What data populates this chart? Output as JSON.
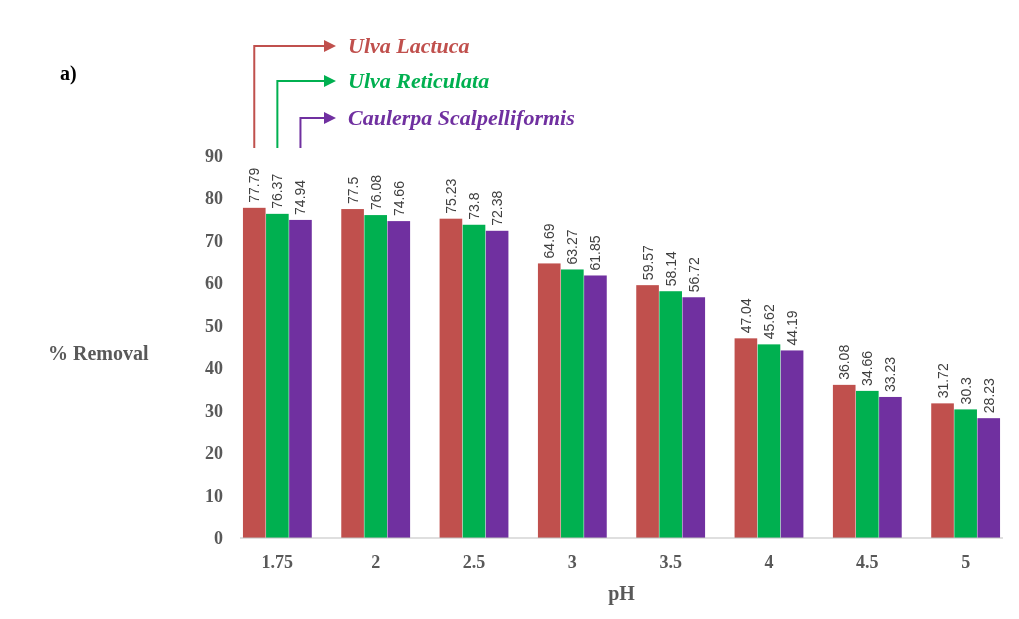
{
  "chart_data": {
    "type": "bar",
    "xlabel": "pH",
    "ylabel": "% Removal",
    "annotations": [
      "a)"
    ],
    "categories": [
      "1.75",
      "2",
      "2.5",
      "3",
      "3.5",
      "4",
      "4.5",
      "5"
    ],
    "series": [
      {
        "name": "Ulva Lactuca",
        "color": "#c0504d",
        "values": [
          77.79,
          77.5,
          75.23,
          64.69,
          59.57,
          47.04,
          36.08,
          31.72
        ]
      },
      {
        "name": "Ulva Reticulata",
        "color": "#00b050",
        "values": [
          76.37,
          76.08,
          73.8,
          63.27,
          58.14,
          45.62,
          34.66,
          30.3
        ]
      },
      {
        "name": "Caulerpa Scalpelliformis",
        "color": "#7030a0",
        "values": [
          74.94,
          74.66,
          72.38,
          61.85,
          56.72,
          44.19,
          33.23,
          28.23
        ]
      }
    ],
    "ylim": [
      0,
      90
    ],
    "yticks": [
      0,
      10,
      20,
      30,
      40,
      50,
      60,
      70,
      80,
      90
    ],
    "data_labels": true,
    "legend": "top",
    "grid": false
  }
}
